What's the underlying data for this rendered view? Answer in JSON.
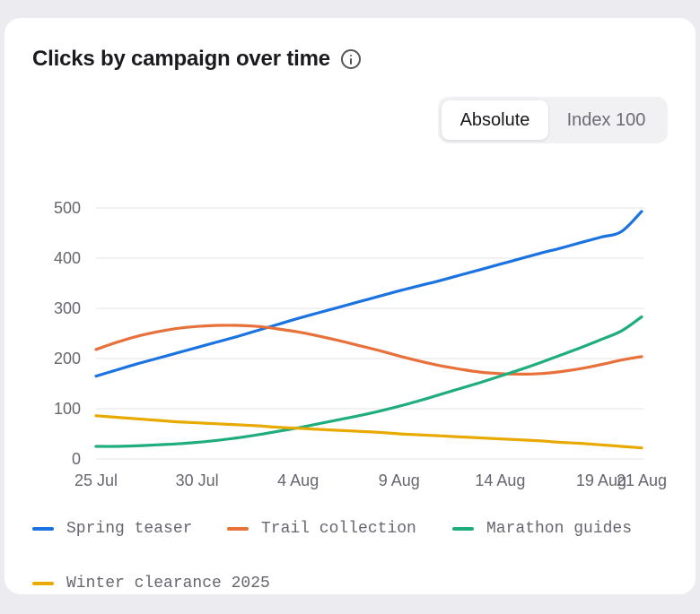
{
  "title": "Clicks by campaign over time",
  "toggle": {
    "options": [
      "Absolute",
      "Index 100"
    ],
    "selected": "Absolute"
  },
  "colors": {
    "grid": "#e6e6ea",
    "axis_text": "#666670"
  },
  "chart_data": {
    "type": "line",
    "title": "Clicks by campaign over time",
    "xlabel": "",
    "ylabel": "",
    "x_ticks": [
      "25 Jul",
      "30 Jul",
      "4 Aug",
      "9 Aug",
      "14 Aug",
      "19 Aug",
      "21 Aug"
    ],
    "y_ticks": [
      0,
      100,
      200,
      300,
      400,
      500
    ],
    "ylim": [
      0,
      500
    ],
    "xlim": [
      "2025-07-25",
      "2025-08-21"
    ],
    "grid": true,
    "legend_position": "bottom",
    "x": [
      "25 Jul",
      "26 Jul",
      "27 Jul",
      "28 Jul",
      "29 Jul",
      "30 Jul",
      "31 Jul",
      "1 Aug",
      "2 Aug",
      "3 Aug",
      "4 Aug",
      "5 Aug",
      "6 Aug",
      "7 Aug",
      "8 Aug",
      "9 Aug",
      "10 Aug",
      "11 Aug",
      "12 Aug",
      "13 Aug",
      "14 Aug",
      "15 Aug",
      "16 Aug",
      "17 Aug",
      "18 Aug",
      "19 Aug",
      "20 Aug",
      "21 Aug"
    ],
    "series": [
      {
        "name": "Spring teaser",
        "color": "#1a73e0",
        "values": [
          165,
          177,
          189,
          200,
          211,
          222,
          233,
          244,
          256,
          268,
          280,
          291,
          302,
          313,
          324,
          335,
          345,
          355,
          366,
          377,
          388,
          399,
          410,
          420,
          431,
          442,
          453,
          493
        ]
      },
      {
        "name": "Trail collection",
        "color": "#e8703a",
        "values": [
          218,
          232,
          244,
          253,
          260,
          264,
          266,
          266,
          264,
          259,
          253,
          245,
          236,
          226,
          216,
          205,
          195,
          186,
          179,
          173,
          170,
          169,
          170,
          174,
          180,
          188,
          197,
          204
        ]
      },
      {
        "name": "Marathon guides",
        "color": "#20ad7d",
        "values": [
          25,
          25,
          26,
          28,
          30,
          33,
          37,
          42,
          48,
          55,
          62,
          70,
          78,
          86,
          95,
          105,
          116,
          128,
          140,
          152,
          165,
          178,
          192,
          207,
          222,
          238,
          255,
          283
        ]
      },
      {
        "name": "Winter clearance 2025",
        "color": "#e8a900",
        "values": [
          86,
          83,
          80,
          77,
          74,
          72,
          70,
          68,
          66,
          63,
          61,
          59,
          57,
          55,
          53,
          50,
          48,
          46,
          44,
          42,
          40,
          38,
          36,
          33,
          31,
          28,
          25,
          22
        ]
      }
    ]
  }
}
